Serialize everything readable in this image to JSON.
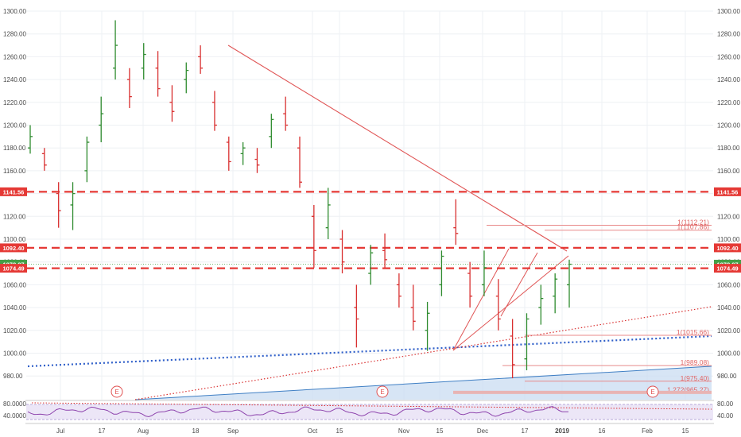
{
  "chart_data": {
    "type": "ohlc",
    "y_ticks": [
      "1300.00",
      "1280.00",
      "1260.00",
      "1240.00",
      "1220.00",
      "1200.00",
      "1180.00",
      "1160.00",
      "1140.00",
      "1120.00",
      "1100.00",
      "1080.00",
      "1060.00",
      "1040.00",
      "1020.00",
      "1000.00",
      "980.00"
    ],
    "ylim": [
      970,
      1310
    ],
    "x_ticks": [
      "Jul",
      "17",
      "Aug",
      "18",
      "Sep",
      "Oct",
      "15",
      "Nov",
      "15",
      "Dec",
      "17",
      "2019",
      "16",
      "Feb",
      "15"
    ],
    "price_badges": [
      {
        "label": "1141.56",
        "value": 1141.56,
        "color": "#e53935"
      },
      {
        "label": "1092.40",
        "value": 1092.4,
        "color": "#e53935"
      },
      {
        "label": "1078.07",
        "value": 1078.07,
        "color": "#43a047"
      },
      {
        "label": "1074.49",
        "value": 1074.49,
        "color": "#e53935"
      }
    ],
    "horizontal_levels": [
      1141.56,
      1092.4,
      1074.49
    ],
    "fib_labels": [
      {
        "text": "1(1112.21)",
        "value": 1112.21
      },
      {
        "text": "1(1107.86)",
        "value": 1107.86
      },
      {
        "text": "1(1015.66)",
        "value": 1015.66
      },
      {
        "text": "1(989.08)",
        "value": 989.08
      },
      {
        "text": "1(975.40)",
        "value": 975.4
      },
      {
        "text": "1.272(965.27)",
        "value": 965.27
      }
    ],
    "events": [
      "E",
      "E",
      "E"
    ],
    "bars": [
      {
        "x": "Jul 01",
        "open": 1180,
        "high": 1200,
        "low": 1175,
        "close": 1190
      },
      {
        "x": "Jul 05",
        "open": 1175,
        "high": 1180,
        "low": 1160,
        "close": 1165
      },
      {
        "x": "Jul 10",
        "open": 1140,
        "high": 1150,
        "low": 1110,
        "close": 1125
      },
      {
        "x": "Jul 15",
        "open": 1130,
        "high": 1150,
        "low": 1108,
        "close": 1140
      },
      {
        "x": "Jul 20",
        "open": 1160,
        "high": 1190,
        "low": 1150,
        "close": 1185
      },
      {
        "x": "Jul 25",
        "open": 1200,
        "high": 1225,
        "low": 1185,
        "close": 1210
      },
      {
        "x": "Jul 28",
        "open": 1250,
        "high": 1292,
        "low": 1240,
        "close": 1270
      },
      {
        "x": "Aug 02",
        "open": 1240,
        "high": 1250,
        "low": 1215,
        "close": 1225
      },
      {
        "x": "Aug 08",
        "open": 1250,
        "high": 1272,
        "low": 1240,
        "close": 1262
      },
      {
        "x": "Aug 14",
        "open": 1250,
        "high": 1265,
        "low": 1225,
        "close": 1232
      },
      {
        "x": "Aug 20",
        "open": 1220,
        "high": 1235,
        "low": 1203,
        "close": 1212
      },
      {
        "x": "Aug 26",
        "open": 1240,
        "high": 1255,
        "low": 1228,
        "close": 1248
      },
      {
        "x": "Aug 30",
        "open": 1260,
        "high": 1270,
        "low": 1245,
        "close": 1250
      },
      {
        "x": "Sep 04",
        "open": 1220,
        "high": 1230,
        "low": 1195,
        "close": 1200
      },
      {
        "x": "Sep 10",
        "open": 1185,
        "high": 1190,
        "low": 1160,
        "close": 1168
      },
      {
        "x": "Sep 16",
        "open": 1175,
        "high": 1185,
        "low": 1165,
        "close": 1180
      },
      {
        "x": "Sep 22",
        "open": 1170,
        "high": 1180,
        "low": 1158,
        "close": 1165
      },
      {
        "x": "Sep 28",
        "open": 1190,
        "high": 1210,
        "low": 1180,
        "close": 1205
      },
      {
        "x": "Oct 03",
        "open": 1210,
        "high": 1225,
        "low": 1195,
        "close": 1200
      },
      {
        "x": "Oct 08",
        "open": 1180,
        "high": 1190,
        "low": 1145,
        "close": 1150
      },
      {
        "x": "Oct 12",
        "open": 1120,
        "high": 1130,
        "low": 1075,
        "close": 1090
      },
      {
        "x": "Oct 18",
        "open": 1110,
        "high": 1145,
        "low": 1100,
        "close": 1130
      },
      {
        "x": "Oct 24",
        "open": 1100,
        "high": 1108,
        "low": 1070,
        "close": 1080
      },
      {
        "x": "Oct 29",
        "open": 1040,
        "high": 1060,
        "low": 1005,
        "close": 1030
      },
      {
        "x": "Nov 02",
        "open": 1070,
        "high": 1095,
        "low": 1060,
        "close": 1088
      },
      {
        "x": "Nov 08",
        "open": 1090,
        "high": 1105,
        "low": 1075,
        "close": 1082
      },
      {
        "x": "Nov 14",
        "open": 1060,
        "high": 1070,
        "low": 1040,
        "close": 1050
      },
      {
        "x": "Nov 20",
        "open": 1040,
        "high": 1060,
        "low": 1020,
        "close": 1028
      },
      {
        "x": "Nov 26",
        "open": 1020,
        "high": 1045,
        "low": 1002,
        "close": 1035
      },
      {
        "x": "Nov 30",
        "open": 1060,
        "high": 1090,
        "low": 1050,
        "close": 1085
      },
      {
        "x": "Dec 03",
        "open": 1110,
        "high": 1135,
        "low": 1095,
        "close": 1105
      },
      {
        "x": "Dec 07",
        "open": 1070,
        "high": 1080,
        "low": 1040,
        "close": 1050
      },
      {
        "x": "Dec 12",
        "open": 1060,
        "high": 1090,
        "low": 1050,
        "close": 1075
      },
      {
        "x": "Dec 17",
        "open": 1050,
        "high": 1065,
        "low": 1020,
        "close": 1030
      },
      {
        "x": "Dec 21",
        "open": 1015,
        "high": 1030,
        "low": 978,
        "close": 990
      },
      {
        "x": "Dec 26",
        "open": 995,
        "high": 1035,
        "low": 985,
        "close": 1030
      },
      {
        "x": "Dec 31",
        "open": 1040,
        "high": 1060,
        "low": 1025,
        "close": 1048
      },
      {
        "x": "Jan 04",
        "open": 1050,
        "high": 1070,
        "low": 1035,
        "close": 1065
      },
      {
        "x": "Jan 08",
        "open": 1060,
        "high": 1082,
        "low": 1040,
        "close": 1078
      }
    ]
  }
}
